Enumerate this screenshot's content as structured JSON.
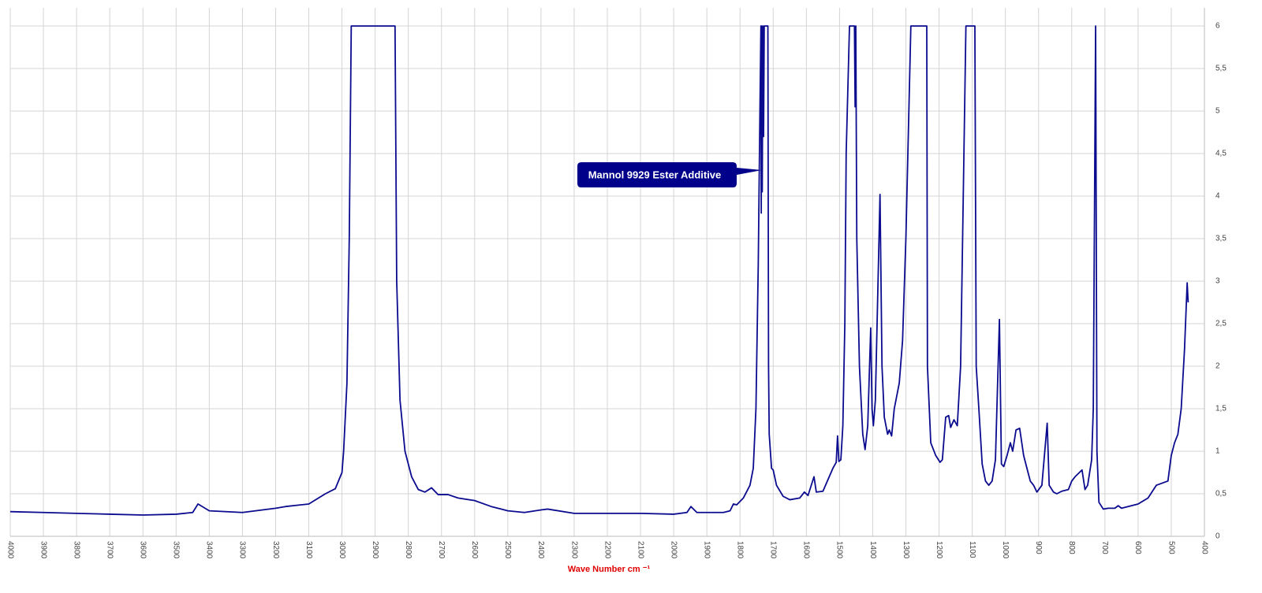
{
  "chart_data": {
    "type": "line",
    "x_label": "Wave Number cm ⁻¹",
    "annotation": "Mannol 9929 Ester Additive",
    "xlim": [
      4000,
      400
    ],
    "xticks": [
      4000,
      3900,
      3800,
      3700,
      3600,
      3500,
      3400,
      3300,
      3200,
      3100,
      3000,
      2900,
      2800,
      2700,
      2600,
      2500,
      2400,
      2300,
      2200,
      2100,
      2000,
      1900,
      1800,
      1700,
      1600,
      1500,
      1400,
      1300,
      1200,
      1100,
      1000,
      900,
      800,
      700,
      600,
      500,
      400
    ],
    "ylim": [
      0,
      6
    ],
    "yticks": [
      0,
      {
        "value": 0.5,
        "label": "0,5"
      },
      1,
      {
        "value": 1.5,
        "label": "1,5"
      },
      2,
      {
        "value": 2.5,
        "label": "2,5"
      },
      3,
      {
        "value": 3.5,
        "label": "3,5"
      },
      4,
      {
        "value": 4.5,
        "label": "4,5"
      },
      5,
      {
        "value": 5.5,
        "label": "5,5"
      },
      6
    ],
    "grid": true,
    "color": "#0b0b8f",
    "x": [
      4000,
      3900,
      3800,
      3700,
      3600,
      3500,
      3450,
      3434,
      3400,
      3300,
      3200,
      3170,
      3100,
      3050,
      3020,
      3000,
      2995,
      2985,
      2978,
      2972,
      2840,
      2835,
      2825,
      2810,
      2790,
      2770,
      2750,
      2730,
      2710,
      2680,
      2650,
      2600,
      2550,
      2500,
      2450,
      2400,
      2380,
      2300,
      2200,
      2100,
      2000,
      1960,
      1948,
      1930,
      1850,
      1830,
      1820,
      1810,
      1790,
      1770,
      1760,
      1752,
      1745,
      1740,
      1737,
      1736,
      1735,
      1733,
      1731,
      1729,
      1727,
      1716,
      1714,
      1712,
      1705,
      1700,
      1690,
      1670,
      1650,
      1620,
      1606,
      1595,
      1577,
      1570,
      1550,
      1520,
      1510,
      1506,
      1502,
      1496,
      1490,
      1484,
      1480,
      1470,
      1455,
      1453,
      1451,
      1448,
      1440,
      1430,
      1423,
      1415,
      1406,
      1402,
      1398,
      1392,
      1378,
      1372,
      1365,
      1355,
      1350,
      1343,
      1335,
      1320,
      1310,
      1300,
      1285,
      1237,
      1235,
      1225,
      1210,
      1197,
      1190,
      1180,
      1171,
      1165,
      1155,
      1145,
      1135,
      1125,
      1119,
      1092,
      1088,
      1080,
      1070,
      1060,
      1050,
      1040,
      1030,
      1018,
      1012,
      1005,
      995,
      985,
      978,
      968,
      957,
      945,
      935,
      925,
      915,
      905,
      890,
      874,
      868,
      855,
      845,
      830,
      810,
      800,
      790,
      769,
      760,
      752,
      740,
      735,
      728,
      724,
      718,
      705,
      690,
      670,
      660,
      650,
      600,
      570,
      545,
      510,
      500,
      490,
      480,
      470,
      460,
      452,
      449
    ],
    "series": [
      {
        "name": "Mannol 9929 Ester Additive",
        "values": [
          0.29,
          0.28,
          0.27,
          0.26,
          0.25,
          0.26,
          0.28,
          0.38,
          0.3,
          0.28,
          0.33,
          0.35,
          0.38,
          0.5,
          0.56,
          0.75,
          1.0,
          1.8,
          3.5,
          6,
          6,
          3,
          1.6,
          1.0,
          0.7,
          0.55,
          0.52,
          0.57,
          0.49,
          0.49,
          0.45,
          0.42,
          0.35,
          0.3,
          0.28,
          0.31,
          0.32,
          0.27,
          0.27,
          0.27,
          0.26,
          0.28,
          0.35,
          0.28,
          0.28,
          0.3,
          0.38,
          0.37,
          0.45,
          0.6,
          0.8,
          1.5,
          3.2,
          5,
          6,
          3.8,
          6,
          4.05,
          6,
          4.7,
          6,
          6,
          2.0,
          1.2,
          0.8,
          0.78,
          0.6,
          0.47,
          0.43,
          0.45,
          0.52,
          0.48,
          0.7,
          0.52,
          0.53,
          0.8,
          0.87,
          1.18,
          0.88,
          0.9,
          1.3,
          2.5,
          4.5,
          6,
          6,
          5.05,
          6,
          3.5,
          2.0,
          1.2,
          1.02,
          1.3,
          2.45,
          1.5,
          1.3,
          1.6,
          4.02,
          2.0,
          1.4,
          1.2,
          1.25,
          1.18,
          1.5,
          1.8,
          2.3,
          3.5,
          6,
          6,
          2.0,
          1.1,
          0.95,
          0.87,
          0.9,
          1.4,
          1.42,
          1.28,
          1.37,
          1.3,
          2.0,
          4.5,
          6,
          6,
          2.0,
          1.5,
          0.85,
          0.65,
          0.6,
          0.65,
          0.9,
          2.55,
          0.85,
          0.82,
          0.95,
          1.1,
          1.0,
          1.25,
          1.27,
          0.95,
          0.8,
          0.65,
          0.6,
          0.52,
          0.6,
          1.33,
          0.6,
          0.52,
          0.5,
          0.53,
          0.55,
          0.65,
          0.7,
          0.78,
          0.55,
          0.6,
          0.9,
          1.5,
          6,
          1.0,
          0.4,
          0.32,
          0.33,
          0.33,
          0.36,
          0.33,
          0.38,
          0.45,
          0.6,
          0.65,
          0.95,
          1.1,
          1.2,
          1.5,
          2.2,
          2.98,
          2.75
        ]
      }
    ]
  }
}
